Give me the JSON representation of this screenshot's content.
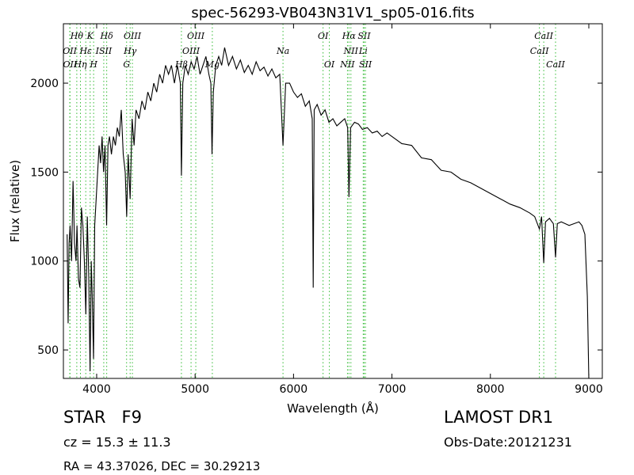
{
  "chart_data": {
    "type": "line",
    "title": "spec-56293-VB043N31V1_sp05-016.fits",
    "xlabel": "Wavelength (Å)",
    "ylabel": "Flux (relative)",
    "color": "#000000",
    "line_color": "#33bb33",
    "xlim": [
      3662,
      9137
    ],
    "ylim": [
      340,
      2334
    ],
    "xticks": [
      4000,
      5000,
      6000,
      7000,
      8000,
      9000
    ],
    "yticks": [
      500,
      1000,
      1500,
      2000
    ],
    "x": [
      3700,
      3710,
      3720,
      3730,
      3745,
      3760,
      3775,
      3790,
      3800,
      3815,
      3830,
      3845,
      3860,
      3875,
      3890,
      3905,
      3920,
      3933,
      3945,
      3955,
      3968,
      3980,
      3995,
      4010,
      4025,
      4040,
      4055,
      4070,
      4085,
      4101,
      4115,
      4130,
      4150,
      4170,
      4190,
      4210,
      4230,
      4250,
      4270,
      4290,
      4305,
      4320,
      4340,
      4360,
      4380,
      4400,
      4430,
      4460,
      4490,
      4520,
      4550,
      4580,
      4610,
      4640,
      4670,
      4700,
      4730,
      4760,
      4790,
      4820,
      4850,
      4861,
      4875,
      4900,
      4930,
      4960,
      4990,
      5020,
      5050,
      5080,
      5110,
      5140,
      5160,
      5172,
      5185,
      5210,
      5240,
      5270,
      5300,
      5340,
      5380,
      5420,
      5460,
      5500,
      5540,
      5580,
      5620,
      5660,
      5700,
      5740,
      5780,
      5820,
      5860,
      5893,
      5920,
      5960,
      6000,
      6040,
      6080,
      6120,
      6160,
      6190,
      6200,
      6210,
      6240,
      6280,
      6320,
      6360,
      6400,
      6440,
      6480,
      6520,
      6550,
      6563,
      6580,
      6620,
      6660,
      6700,
      6750,
      6800,
      6850,
      6900,
      6950,
      7000,
      7100,
      7200,
      7300,
      7400,
      7500,
      7600,
      7700,
      7800,
      7900,
      8000,
      8100,
      8200,
      8300,
      8400,
      8450,
      8498,
      8520,
      8542,
      8560,
      8600,
      8640,
      8662,
      8680,
      8720,
      8760,
      8800,
      8850,
      8900,
      8930,
      8960,
      8985,
      9000
    ],
    "values": [
      1150,
      650,
      1100,
      1200,
      1000,
      1450,
      1100,
      1000,
      1200,
      900,
      850,
      1300,
      1200,
      1000,
      700,
      1250,
      900,
      380,
      1000,
      800,
      450,
      1200,
      1350,
      1500,
      1650,
      1550,
      1700,
      1500,
      1650,
      1200,
      1650,
      1700,
      1600,
      1700,
      1650,
      1750,
      1700,
      1850,
      1600,
      1500,
      1250,
      1600,
      1350,
      1800,
      1650,
      1850,
      1800,
      1900,
      1850,
      1950,
      1900,
      2000,
      1950,
      2050,
      2000,
      2100,
      2050,
      2100,
      2000,
      2100,
      2000,
      1480,
      2000,
      2100,
      2050,
      2120,
      2080,
      2150,
      2050,
      2100,
      2150,
      2050,
      2000,
      1600,
      1950,
      2100,
      2150,
      2100,
      2200,
      2100,
      2150,
      2080,
      2130,
      2060,
      2100,
      2050,
      2120,
      2070,
      2090,
      2040,
      2080,
      2030,
      2050,
      1650,
      2000,
      2000,
      1950,
      1920,
      1940,
      1870,
      1900,
      1800,
      850,
      1850,
      1880,
      1820,
      1850,
      1780,
      1800,
      1760,
      1780,
      1800,
      1750,
      1360,
      1750,
      1780,
      1770,
      1740,
      1750,
      1720,
      1730,
      1700,
      1720,
      1700,
      1660,
      1650,
      1580,
      1570,
      1510,
      1500,
      1460,
      1440,
      1410,
      1380,
      1350,
      1320,
      1300,
      1270,
      1250,
      1180,
      1250,
      990,
      1220,
      1240,
      1210,
      1020,
      1210,
      1220,
      1210,
      1200,
      1210,
      1220,
      1200,
      1150,
      800,
      340
    ],
    "spectral_lines": [
      [
        {
          "label": "Hθ",
          "x": 3798
        },
        {
          "label": "K",
          "x": 3934
        },
        {
          "label": "Hδ",
          "x": 4102
        },
        {
          "label": "OIII",
          "x": 4363
        },
        {
          "label": "OIII",
          "x": 5007
        },
        {
          "label": "OI",
          "x": 6300
        },
        {
          "label": "Hα",
          "x": 6563
        },
        {
          "label": "SII",
          "x": 6717
        },
        {
          "label": "CaII",
          "x": 8542
        }
      ],
      [
        {
          "label": "OII",
          "x": 3727
        },
        {
          "label": "Hε",
          "x": 3889
        },
        {
          "label": "ISII",
          "x": 4072
        },
        {
          "label": "Hγ",
          "x": 4340
        },
        {
          "label": "OIII",
          "x": 4959
        },
        {
          "label": "Na",
          "x": 5893
        },
        {
          "label": "NII",
          "x": 6583
        },
        {
          "label": "Li",
          "x": 6708
        },
        {
          "label": "CaII",
          "x": 8498
        }
      ],
      [
        {
          "label": "OII",
          "x": 3729
        },
        {
          "label": "Hη",
          "x": 3835
        },
        {
          "label": "H",
          "x": 3969
        },
        {
          "label": "G",
          "x": 4304
        },
        {
          "label": "Hβ",
          "x": 4861
        },
        {
          "label": "Mg",
          "x": 5175
        },
        {
          "label": "OI",
          "x": 6364
        },
        {
          "label": "NII",
          "x": 6548
        },
        {
          "label": "SII",
          "x": 6731
        },
        {
          "label": "CaII",
          "x": 8662
        }
      ]
    ],
    "info": {
      "object": "STAR   F9",
      "cz": "cz = 15.3 ± 11.3",
      "coords": "RA = 43.37026, DEC = 30.29213",
      "survey": "LAMOST DR1",
      "obs_date": "Obs-Date:20121231"
    }
  }
}
